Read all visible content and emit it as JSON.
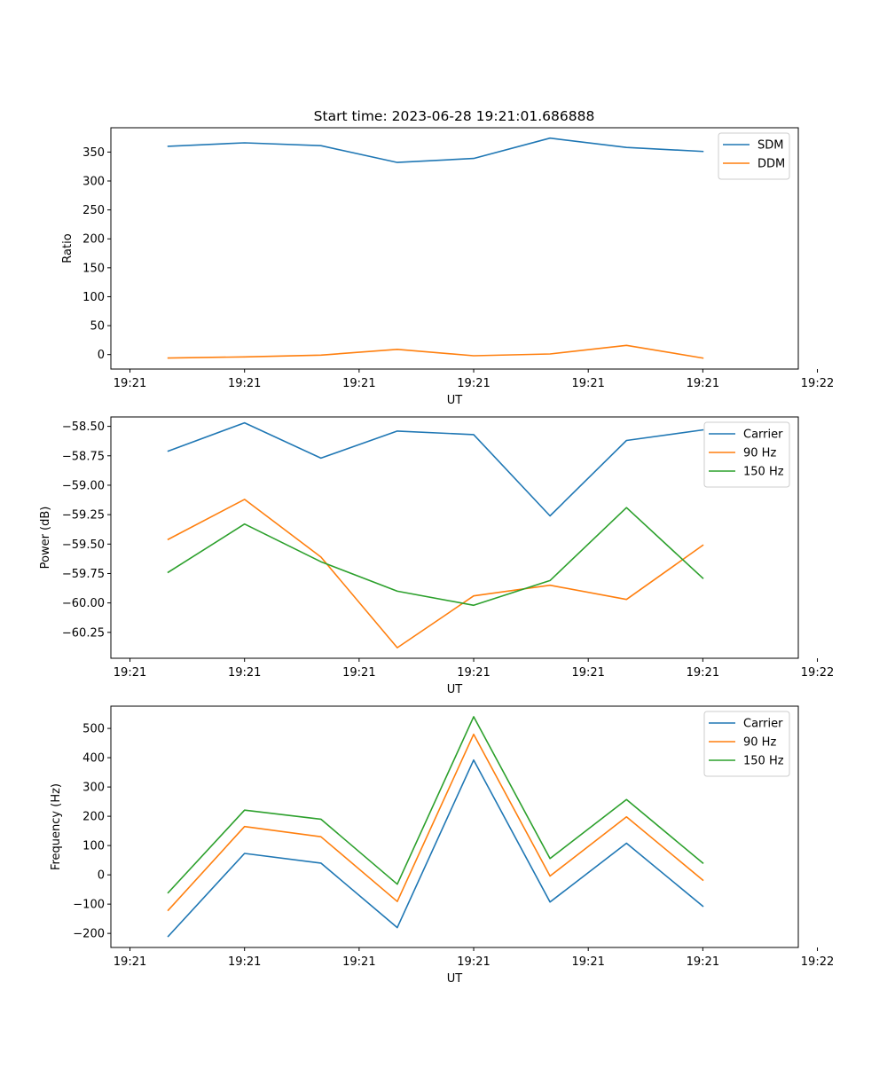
{
  "figure": {
    "title": "Start time: 2023-06-28 19:21:01.686888"
  },
  "chart_data": [
    {
      "type": "line",
      "title": "Start time: 2023-06-28 19:21:01.686888",
      "xlabel": "UT",
      "ylabel": "Ratio",
      "xlim": [
        0,
        9
      ],
      "ylim": [
        -25,
        392
      ],
      "x": [
        0.75,
        1.75,
        2.75,
        3.75,
        4.75,
        5.75,
        6.75,
        7.75
      ],
      "x_ticks": [
        0.25,
        1.75,
        3.25,
        4.75,
        6.25,
        7.75,
        9.25
      ],
      "x_tick_labels": [
        "19:21",
        "19:21",
        "19:21",
        "19:21",
        "19:21",
        "19:21",
        "19:22"
      ],
      "y_ticks": [
        0,
        50,
        100,
        150,
        200,
        250,
        300,
        350
      ],
      "y_tick_labels": [
        "0",
        "50",
        "100",
        "150",
        "200",
        "250",
        "300",
        "350"
      ],
      "legend_position": "top-right",
      "series": [
        {
          "name": "SDM",
          "color": "#1f77b4",
          "values": [
            360,
            366,
            361,
            332,
            339,
            374,
            358,
            351
          ]
        },
        {
          "name": "DDM",
          "color": "#ff7f0e",
          "values": [
            -6,
            -4,
            -1,
            9,
            -2,
            1,
            16,
            -6
          ]
        }
      ]
    },
    {
      "type": "line",
      "title": "",
      "xlabel": "UT",
      "ylabel": "Power (dB)",
      "xlim": [
        0,
        9
      ],
      "ylim": [
        -60.47,
        -58.42
      ],
      "x": [
        0.75,
        1.75,
        2.75,
        3.75,
        4.75,
        5.75,
        6.75,
        7.75
      ],
      "x_ticks": [
        0.25,
        1.75,
        3.25,
        4.75,
        6.25,
        7.75,
        9.25
      ],
      "x_tick_labels": [
        "19:21",
        "19:21",
        "19:21",
        "19:21",
        "19:21",
        "19:21",
        "19:22"
      ],
      "y_ticks": [
        -60.25,
        -60.0,
        -59.75,
        -59.5,
        -59.25,
        -59.0,
        -58.75,
        -58.5
      ],
      "y_tick_labels": [
        "−60.25",
        "−60.00",
        "−59.75",
        "−59.50",
        "−59.25",
        "−59.00",
        "−58.75",
        "−58.50"
      ],
      "legend_position": "top-right",
      "series": [
        {
          "name": "Carrier",
          "color": "#1f77b4",
          "values": [
            -58.71,
            -58.47,
            -58.77,
            -58.54,
            -58.57,
            -59.26,
            -58.62,
            -58.53
          ]
        },
        {
          "name": "90 Hz",
          "color": "#ff7f0e",
          "values": [
            -59.46,
            -59.12,
            -59.61,
            -60.38,
            -59.94,
            -59.85,
            -59.97,
            -59.51
          ]
        },
        {
          "name": "150 Hz",
          "color": "#2ca02c",
          "values": [
            -59.74,
            -59.33,
            -59.65,
            -59.9,
            -60.02,
            -59.81,
            -59.19,
            -59.79
          ]
        }
      ]
    },
    {
      "type": "line",
      "title": "",
      "xlabel": "UT",
      "ylabel": "Frequency (Hz)",
      "xlim": [
        0,
        9
      ],
      "ylim": [
        -248,
        576
      ],
      "x": [
        0.75,
        1.75,
        2.75,
        3.75,
        4.75,
        5.75,
        6.75,
        7.75
      ],
      "x_ticks": [
        0.25,
        1.75,
        3.25,
        4.75,
        6.25,
        7.75,
        9.25
      ],
      "x_tick_labels": [
        "19:21",
        "19:21",
        "19:21",
        "19:21",
        "19:21",
        "19:21",
        "19:22"
      ],
      "y_ticks": [
        -200,
        -100,
        0,
        100,
        200,
        300,
        400,
        500
      ],
      "y_tick_labels": [
        "−200",
        "−100",
        "0",
        "100",
        "200",
        "300",
        "400",
        "500"
      ],
      "legend_position": "top-right",
      "series": [
        {
          "name": "Carrier",
          "color": "#1f77b4",
          "values": [
            -210,
            73,
            40,
            -180,
            392,
            -93,
            108,
            -107
          ]
        },
        {
          "name": "90 Hz",
          "color": "#ff7f0e",
          "values": [
            -121,
            165,
            130,
            -91,
            480,
            -4,
            198,
            -18
          ]
        },
        {
          "name": "150 Hz",
          "color": "#2ca02c",
          "values": [
            -61,
            221,
            190,
            -32,
            540,
            56,
            257,
            40
          ]
        }
      ]
    }
  ]
}
